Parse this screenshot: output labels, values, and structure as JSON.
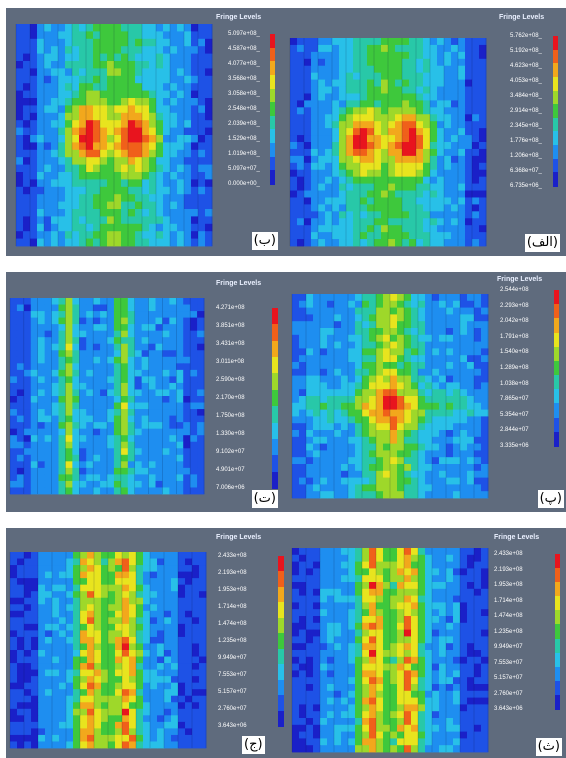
{
  "panels": [
    {
      "id": "b",
      "caption": "(ب)",
      "legend_title": "Fringe Levels",
      "levels": [
        "5.097e+08_",
        "4.587e+08_",
        "4.077e+08_",
        "3.568e+08_",
        "3.058e+08_",
        "2.548e+08_",
        "2.039e+08_",
        "1.529e+08_",
        "1.019e+08_",
        "5.097e+07_",
        "0.000e+00_"
      ],
      "pattern": "twin-hotspot"
    },
    {
      "id": "alef",
      "caption": "(الف)",
      "legend_title": "Fringe Levels",
      "levels": [
        "5.762e+08_",
        "5.192e+08_",
        "4.623e+08_",
        "4.053e+08_",
        "3.484e+08_",
        "2.914e+08_",
        "2.345e+08_",
        "1.776e+08_",
        "1.206e+08_",
        "6.368e+07_",
        "6.735e+06_"
      ],
      "pattern": "twin-hotspot"
    },
    {
      "id": "te",
      "caption": "(ت)",
      "legend_title": "Fringe Levels",
      "levels": [
        "4.271e+08",
        "3.851e+08",
        "3.431e+08",
        "3.011e+08",
        "2.590e+08",
        "2.170e+08",
        "1.750e+08",
        "1.330e+08",
        "9.102e+07",
        "4.901e+07",
        "7.006e+06"
      ],
      "pattern": "stripes"
    },
    {
      "id": "pe",
      "caption": "(پ)",
      "legend_title": "Fringe Levels",
      "levels": [
        "2.544e+08",
        "2.293e+08",
        "2.042e+08",
        "1.791e+08",
        "1.540e+08",
        "1.289e+08",
        "1.038e+08",
        "7.865e+07",
        "5.354e+07",
        "2.844e+07",
        "3.335e+06"
      ],
      "pattern": "cross"
    },
    {
      "id": "jim",
      "caption": "(ج)",
      "legend_title": "Fringe Levels",
      "levels": [
        "2.433e+08",
        "2.193e+08",
        "1.953e+08",
        "1.714e+08",
        "1.474e+08",
        "1.235e+08",
        "9.949e+07",
        "7.553e+07",
        "5.157e+07",
        "2.760e+07",
        "3.643e+06"
      ],
      "pattern": "columns"
    },
    {
      "id": "se",
      "caption": "(ث)",
      "legend_title": "Fringe Levels",
      "levels": [
        "2.433e+08",
        "2.193e+08",
        "1.953e+08",
        "1.714e+08",
        "1.474e+08",
        "1.235e+08",
        "9.949e+07",
        "7.553e+07",
        "5.157e+07",
        "2.760e+07",
        "3.643e+06"
      ],
      "pattern": "columns"
    }
  ],
  "colors": {
    "scale": [
      "#e8141e",
      "#f0601a",
      "#f2a81c",
      "#e8e41e",
      "#9ed82a",
      "#3ec83c",
      "#28c8a8",
      "#28c0e8",
      "#1e8ef0",
      "#1e52e6",
      "#1a20c8"
    ],
    "background": "#5f6b7d",
    "field_low": "#0e2a8a"
  }
}
